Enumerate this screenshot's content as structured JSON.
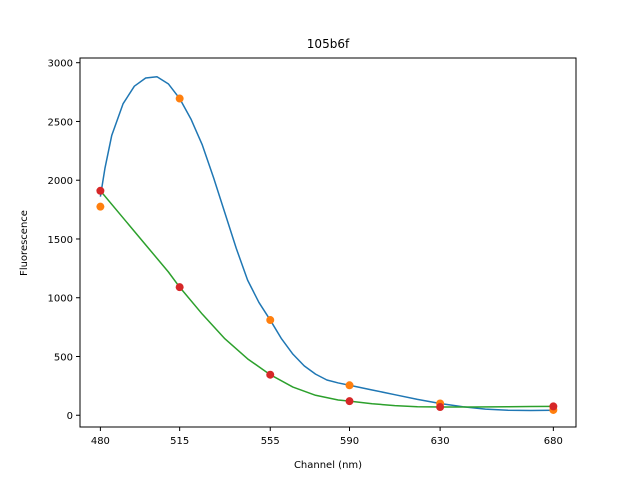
{
  "chart_data": {
    "type": "line",
    "title": "105b6f",
    "xlabel": "Channel (nm)",
    "ylabel": "Fluorescence",
    "xlim": [
      471,
      690
    ],
    "ylim": [
      -100,
      3040
    ],
    "x_ticks": [
      480,
      515,
      555,
      590,
      630,
      680
    ],
    "y_ticks": [
      0,
      500,
      1000,
      1500,
      2000,
      2500,
      3000
    ],
    "grid": false,
    "legend": "none",
    "series": [
      {
        "color": "#ff7f0e",
        "line_color": "#1f77b4",
        "points": [
          {
            "x": 480,
            "y": 1775
          },
          {
            "x": 515,
            "y": 2695
          },
          {
            "x": 555,
            "y": 810
          },
          {
            "x": 590,
            "y": 255
          },
          {
            "x": 630,
            "y": 100
          },
          {
            "x": 680,
            "y": 45
          }
        ],
        "curve": [
          {
            "x": 480,
            "y": 1860
          },
          {
            "x": 482,
            "y": 2100
          },
          {
            "x": 485,
            "y": 2380
          },
          {
            "x": 490,
            "y": 2650
          },
          {
            "x": 495,
            "y": 2800
          },
          {
            "x": 500,
            "y": 2870
          },
          {
            "x": 505,
            "y": 2880
          },
          {
            "x": 510,
            "y": 2820
          },
          {
            "x": 515,
            "y": 2695
          },
          {
            "x": 520,
            "y": 2520
          },
          {
            "x": 525,
            "y": 2300
          },
          {
            "x": 530,
            "y": 2020
          },
          {
            "x": 535,
            "y": 1720
          },
          {
            "x": 540,
            "y": 1420
          },
          {
            "x": 545,
            "y": 1150
          },
          {
            "x": 550,
            "y": 960
          },
          {
            "x": 555,
            "y": 810
          },
          {
            "x": 560,
            "y": 650
          },
          {
            "x": 565,
            "y": 520
          },
          {
            "x": 570,
            "y": 420
          },
          {
            "x": 575,
            "y": 350
          },
          {
            "x": 580,
            "y": 300
          },
          {
            "x": 585,
            "y": 275
          },
          {
            "x": 590,
            "y": 255
          },
          {
            "x": 600,
            "y": 215
          },
          {
            "x": 610,
            "y": 175
          },
          {
            "x": 620,
            "y": 135
          },
          {
            "x": 630,
            "y": 100
          },
          {
            "x": 640,
            "y": 72
          },
          {
            "x": 650,
            "y": 52
          },
          {
            "x": 660,
            "y": 42
          },
          {
            "x": 670,
            "y": 40
          },
          {
            "x": 680,
            "y": 42
          }
        ]
      },
      {
        "color": "#d62728",
        "line_color": "#2ca02c",
        "points": [
          {
            "x": 480,
            "y": 1910
          },
          {
            "x": 515,
            "y": 1090
          },
          {
            "x": 555,
            "y": 345
          },
          {
            "x": 590,
            "y": 120
          },
          {
            "x": 630,
            "y": 70
          },
          {
            "x": 680,
            "y": 75
          }
        ],
        "curve": [
          {
            "x": 480,
            "y": 1910
          },
          {
            "x": 490,
            "y": 1680
          },
          {
            "x": 500,
            "y": 1450
          },
          {
            "x": 510,
            "y": 1220
          },
          {
            "x": 515,
            "y": 1090
          },
          {
            "x": 525,
            "y": 860
          },
          {
            "x": 535,
            "y": 650
          },
          {
            "x": 545,
            "y": 480
          },
          {
            "x": 555,
            "y": 345
          },
          {
            "x": 565,
            "y": 240
          },
          {
            "x": 575,
            "y": 170
          },
          {
            "x": 585,
            "y": 130
          },
          {
            "x": 590,
            "y": 120
          },
          {
            "x": 600,
            "y": 98
          },
          {
            "x": 610,
            "y": 82
          },
          {
            "x": 620,
            "y": 72
          },
          {
            "x": 630,
            "y": 70
          },
          {
            "x": 645,
            "y": 70
          },
          {
            "x": 660,
            "y": 72
          },
          {
            "x": 670,
            "y": 74
          },
          {
            "x": 680,
            "y": 75
          }
        ]
      }
    ]
  }
}
